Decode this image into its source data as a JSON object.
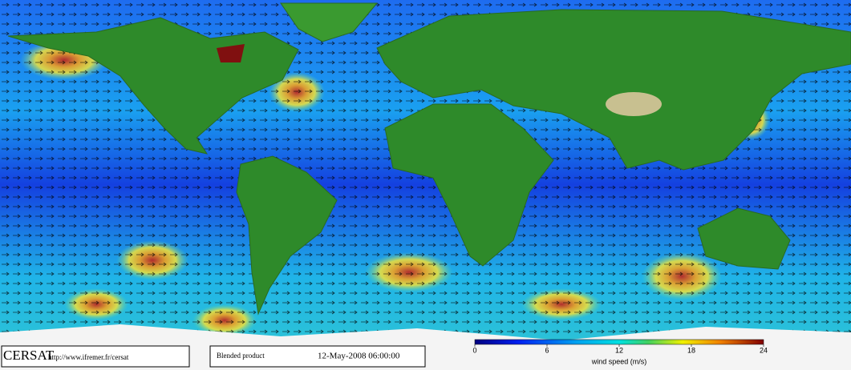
{
  "footer": {
    "source": "CERSAT",
    "url": "http://www.ifremer.fr/cersat",
    "product": "Blended product",
    "date": "12-May-2008 06:00:00"
  },
  "colorbar": {
    "label": "wind speed (m/s)",
    "lim": [
      0,
      24
    ],
    "ticks": [
      0,
      6,
      12,
      18,
      24
    ]
  }
}
